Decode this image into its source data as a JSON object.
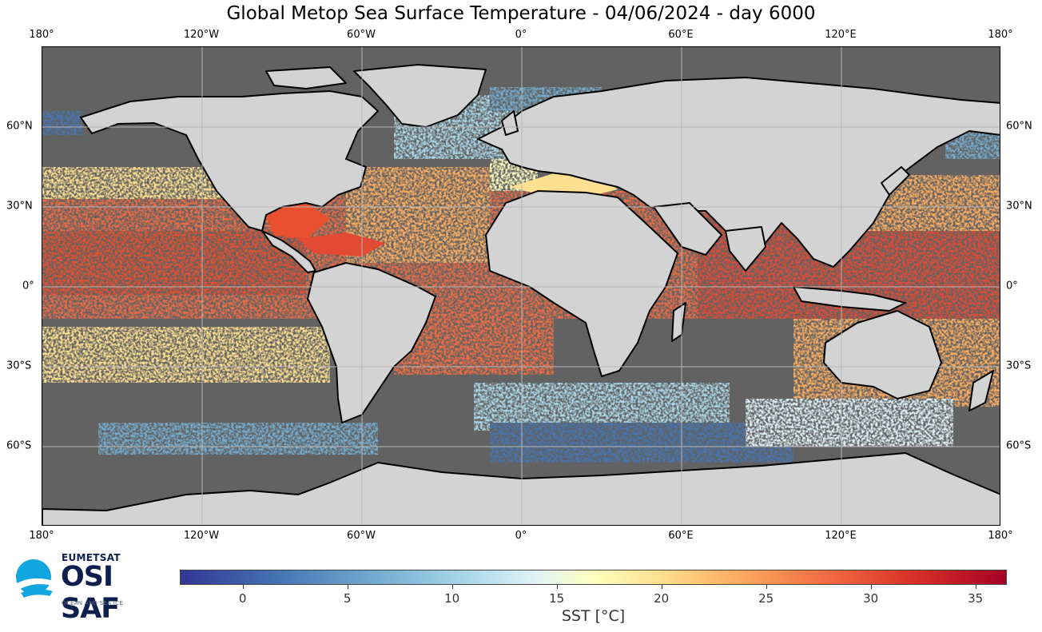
{
  "title": "Global Metop Sea Surface Temperature - 04/06/2024 - day 6000",
  "map": {
    "projection": "equirectangular",
    "lon_range": [
      -180,
      180
    ],
    "lat_range": [
      -90,
      90
    ],
    "ocean_nodata_color": "#626262",
    "land_color": "#d3d3d3",
    "coastline_color": "#000000",
    "gridlines": true
  },
  "lon_ticks": [
    "180°",
    "120°W",
    "60°W",
    "0°",
    "60°E",
    "120°E",
    "180°"
  ],
  "lat_ticks": [
    "60°N",
    "30°N",
    "0°",
    "30°S",
    "60°S"
  ],
  "logo": {
    "brand": "EUMETSAT",
    "name": "OSI SAF",
    "tagline": "OCEAN AND SEA ICE",
    "color": "#0c1f4d",
    "accent": "#12a6e0"
  },
  "colorbar": {
    "label": "SST [°C]",
    "ticks": [
      "0",
      "5",
      "10",
      "15",
      "20",
      "25",
      "30",
      "35"
    ],
    "range": [
      -3,
      36.5
    ],
    "colormap": "RdYlBu_r"
  }
}
